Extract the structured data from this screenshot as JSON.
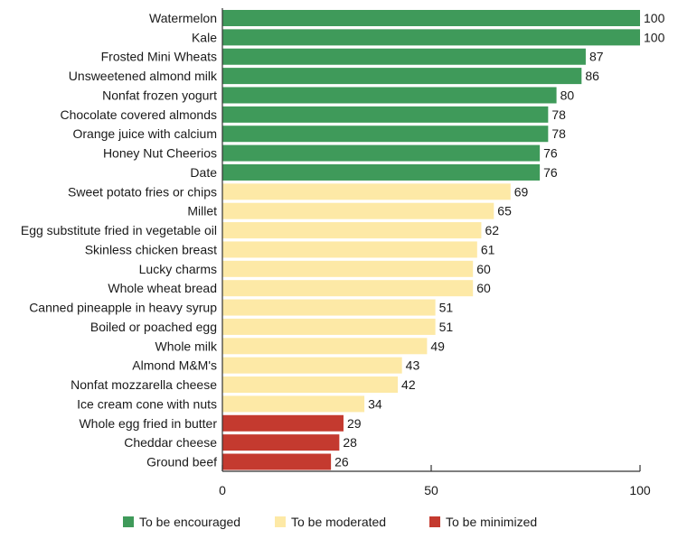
{
  "chart_data": {
    "type": "bar",
    "orientation": "horizontal",
    "title": "",
    "xlabel": "",
    "ylabel": "",
    "xlim": [
      0,
      100
    ],
    "x_ticks": [
      0,
      50,
      100
    ],
    "grid": false,
    "legend_position": "bottom",
    "categories": [
      "Watermelon",
      "Kale",
      "Frosted Mini Wheats",
      "Unsweetened almond milk",
      "Nonfat frozen yogurt",
      "Chocolate covered almonds",
      "Orange juice with calcium",
      "Honey Nut Cheerios",
      "Date",
      "Sweet potato fries or chips",
      "Millet",
      "Egg substitute fried in vegetable oil",
      "Skinless chicken breast",
      "Lucky charms",
      "Whole wheat bread",
      "Canned pineapple in heavy syrup",
      "Boiled or poached egg",
      "Whole milk",
      "Almond M&M's",
      "Nonfat mozzarella cheese",
      "Ice cream cone with nuts",
      "Whole egg fried in butter",
      "Cheddar cheese",
      "Ground beef"
    ],
    "values": [
      100,
      100,
      87,
      86,
      80,
      78,
      78,
      76,
      76,
      69,
      65,
      62,
      61,
      60,
      60,
      51,
      51,
      49,
      43,
      42,
      34,
      29,
      28,
      26
    ],
    "groups": [
      "encouraged",
      "encouraged",
      "encouraged",
      "encouraged",
      "encouraged",
      "encouraged",
      "encouraged",
      "encouraged",
      "encouraged",
      "moderated",
      "moderated",
      "moderated",
      "moderated",
      "moderated",
      "moderated",
      "moderated",
      "moderated",
      "moderated",
      "moderated",
      "moderated",
      "moderated",
      "minimized",
      "minimized",
      "minimized"
    ],
    "legend": [
      {
        "key": "encouraged",
        "label": "To be encouraged",
        "color": "#3f9a5a"
      },
      {
        "key": "moderated",
        "label": "To be moderated",
        "color": "#fde9a6"
      },
      {
        "key": "minimized",
        "label": "To be minimized",
        "color": "#c43a2f"
      }
    ]
  }
}
